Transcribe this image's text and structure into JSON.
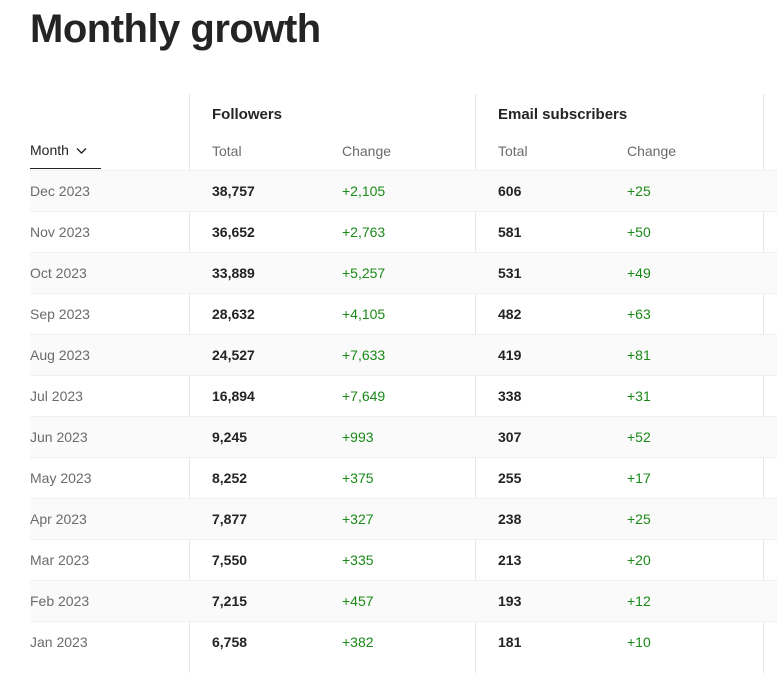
{
  "page": {
    "title": "Monthly growth"
  },
  "table": {
    "month_header": "Month",
    "month_sort_icon": "chevron-down-icon",
    "groups": [
      {
        "label": "Followers",
        "total_label": "Total",
        "change_label": "Change"
      },
      {
        "label": "Email subscribers",
        "total_label": "Total",
        "change_label": "Change"
      }
    ],
    "rows": [
      {
        "month": "Dec 2023",
        "followers_total": "38,757",
        "followers_change": "+2,105",
        "email_total": "606",
        "email_change": "+25"
      },
      {
        "month": "Nov 2023",
        "followers_total": "36,652",
        "followers_change": "+2,763",
        "email_total": "581",
        "email_change": "+50"
      },
      {
        "month": "Oct 2023",
        "followers_total": "33,889",
        "followers_change": "+5,257",
        "email_total": "531",
        "email_change": "+49"
      },
      {
        "month": "Sep 2023",
        "followers_total": "28,632",
        "followers_change": "+4,105",
        "email_total": "482",
        "email_change": "+63"
      },
      {
        "month": "Aug 2023",
        "followers_total": "24,527",
        "followers_change": "+7,633",
        "email_total": "419",
        "email_change": "+81"
      },
      {
        "month": "Jul 2023",
        "followers_total": "16,894",
        "followers_change": "+7,649",
        "email_total": "338",
        "email_change": "+31"
      },
      {
        "month": "Jun 2023",
        "followers_total": "9,245",
        "followers_change": "+993",
        "email_total": "307",
        "email_change": "+52"
      },
      {
        "month": "May 2023",
        "followers_total": "8,252",
        "followers_change": "+375",
        "email_total": "255",
        "email_change": "+17"
      },
      {
        "month": "Apr 2023",
        "followers_total": "7,877",
        "followers_change": "+327",
        "email_total": "238",
        "email_change": "+25"
      },
      {
        "month": "Mar 2023",
        "followers_total": "7,550",
        "followers_change": "+335",
        "email_total": "213",
        "email_change": "+20"
      },
      {
        "month": "Feb 2023",
        "followers_total": "7,215",
        "followers_change": "+457",
        "email_total": "193",
        "email_change": "+12"
      },
      {
        "month": "Jan 2023",
        "followers_total": "6,758",
        "followers_change": "+382",
        "email_total": "181",
        "email_change": "+10"
      }
    ]
  },
  "colors": {
    "positive_change": "#1a8917",
    "text_primary": "#242424",
    "text_muted": "#6b6b6b"
  }
}
